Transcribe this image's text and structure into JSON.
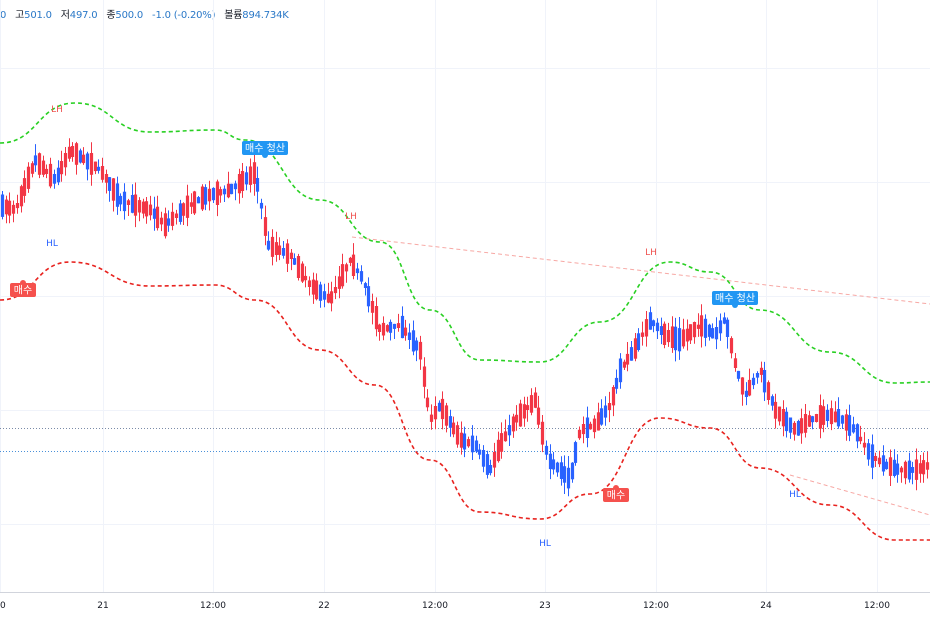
{
  "ohlc_bar": {
    "open_value": "0",
    "high_label": "고",
    "high_value": "501.0",
    "low_label": "저",
    "low_value": "497.0",
    "close_label": "종",
    "close_value": "500.0",
    "change_value": "-1.0 (-0.20%)",
    "volume_label": "볼륨",
    "volume_value": "894.734K"
  },
  "colors": {
    "up": "#f23645",
    "down": "#2962ff",
    "upper_band": "#29d023",
    "lower_band": "#e8231f",
    "trendline": "#f7a8a4",
    "buy_badge": "#f5514d",
    "exit_badge": "#2196f3",
    "hl_text": "#2962ff",
    "lh_text": "#ef5350"
  },
  "chart_data": {
    "type": "candlestick",
    "x_ticks": [
      "0",
      "21",
      "12:00",
      "22",
      "12:00",
      "23",
      "12:00",
      "24",
      "12:00"
    ],
    "grid": true,
    "price_lines": [
      "dotted horizontal",
      "dotted horizontal"
    ],
    "annotations": [
      {
        "kind": "swing",
        "text": "LH"
      },
      {
        "kind": "swing",
        "text": "HL"
      },
      {
        "kind": "swing",
        "text": "LH"
      },
      {
        "kind": "swing",
        "text": "LH"
      },
      {
        "kind": "swing",
        "text": "HL"
      },
      {
        "kind": "swing",
        "text": "HL"
      },
      {
        "kind": "badge",
        "text": "매수"
      },
      {
        "kind": "badge",
        "text": "매수 청산"
      },
      {
        "kind": "badge",
        "text": "매수"
      },
      {
        "kind": "badge",
        "text": "매수 청산"
      }
    ],
    "series": [
      {
        "style": "dashed",
        "color": "#29d023"
      },
      {
        "style": "dashed",
        "color": "#e8231f"
      }
    ]
  }
}
